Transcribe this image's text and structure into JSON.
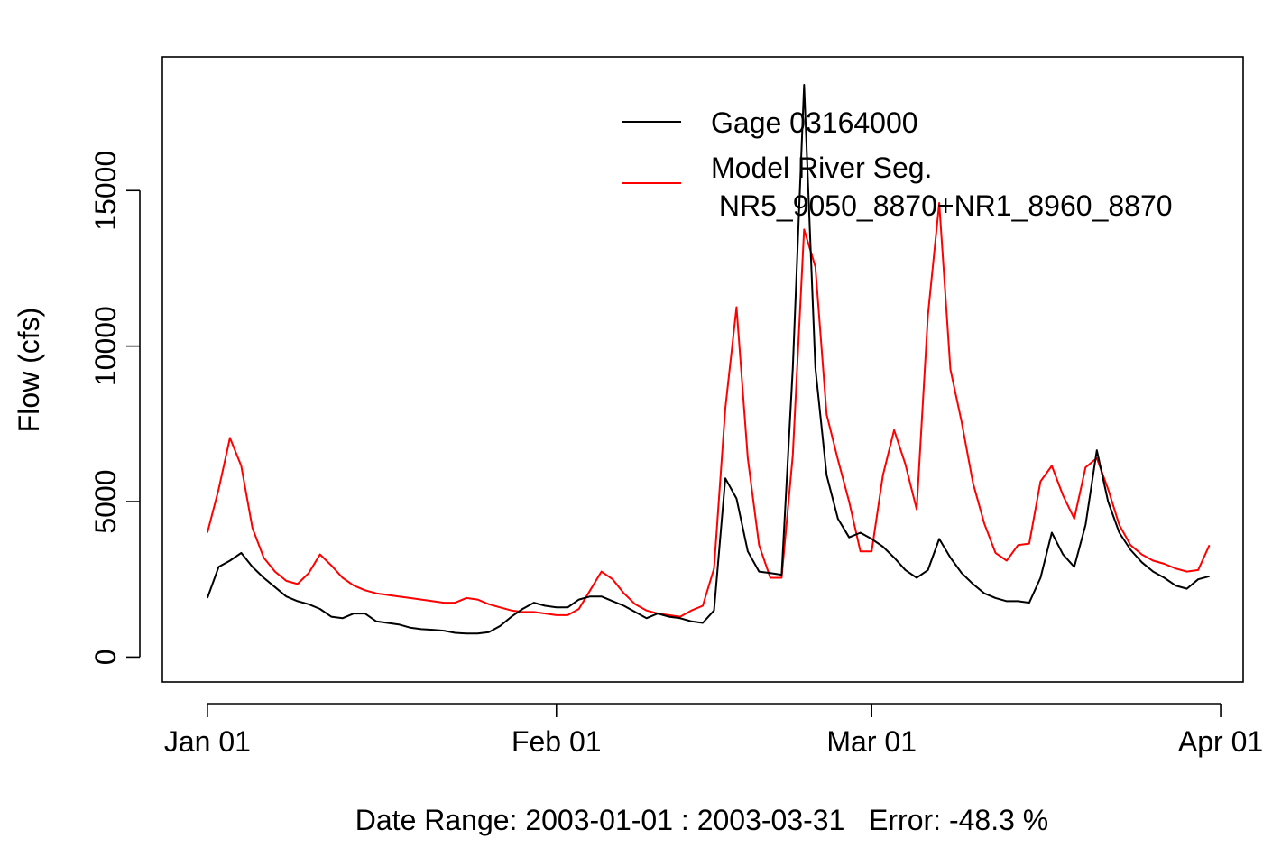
{
  "chart_data": {
    "type": "line",
    "title": "",
    "xlabel": "Date Range: 2003-01-01 : 2003-03-31   Error: -48.3 %",
    "ylabel": "Flow (cfs)",
    "x_start": "2003-01-01",
    "x_end": "2003-03-31",
    "x_ticks": [
      {
        "date": "2003-01-01",
        "label": "Jan 01"
      },
      {
        "date": "2003-02-01",
        "label": "Feb 01"
      },
      {
        "date": "2003-03-01",
        "label": "Mar 01"
      },
      {
        "date": "2003-04-01",
        "label": "Apr 01"
      }
    ],
    "xlim": [
      "2002-12-28",
      "2003-04-03"
    ],
    "ylim": [
      -800,
      19300
    ],
    "y_ticks": [
      0,
      5000,
      10000,
      15000
    ],
    "grid": false,
    "legend_position": "top-right",
    "series": [
      {
        "name": "Gage 03164000",
        "color": "#000000",
        "values": [
          1900,
          2900,
          3100,
          3350,
          2900,
          2550,
          2250,
          1950,
          1800,
          1700,
          1550,
          1300,
          1250,
          1400,
          1400,
          1150,
          1100,
          1050,
          950,
          900,
          880,
          850,
          780,
          760,
          760,
          800,
          1000,
          1300,
          1550,
          1750,
          1650,
          1600,
          1600,
          1850,
          1950,
          1950,
          1800,
          1650,
          1450,
          1250,
          1400,
          1300,
          1250,
          1150,
          1100,
          1500,
          5750,
          5100,
          3400,
          2750,
          2700,
          2650,
          9300,
          18400,
          9300,
          5850,
          4450,
          3850,
          4000,
          3800,
          3550,
          3200,
          2800,
          2550,
          2800,
          3800,
          3200,
          2700,
          2350,
          2050,
          1900,
          1800,
          1800,
          1750,
          2550,
          4000,
          3300,
          2900,
          4250,
          6650,
          5000,
          4000,
          3450,
          3050,
          2750,
          2550,
          2300,
          2200,
          2500,
          2600
        ]
      },
      {
        "name": "Model River Seg.\n NR5_9050_8870+NR1_8960_8870",
        "color": "#ff0000",
        "values": [
          4000,
          5400,
          7050,
          6150,
          4150,
          3200,
          2750,
          2450,
          2350,
          2700,
          3300,
          2950,
          2550,
          2300,
          2150,
          2050,
          2000,
          1950,
          1900,
          1850,
          1800,
          1750,
          1750,
          1900,
          1850,
          1700,
          1600,
          1500,
          1450,
          1450,
          1400,
          1350,
          1350,
          1550,
          2150,
          2750,
          2500,
          2050,
          1700,
          1500,
          1400,
          1350,
          1300,
          1500,
          1650,
          2850,
          8000,
          11250,
          6400,
          3600,
          2550,
          2550,
          6500,
          13750,
          12550,
          7800,
          6350,
          5000,
          3400,
          3400,
          5850,
          7300,
          6200,
          4750,
          11000,
          14600,
          9250,
          7550,
          5600,
          4300,
          3350,
          3100,
          3600,
          3650,
          5650,
          6150,
          5200,
          4450,
          6100,
          6400,
          5400,
          4250,
          3600,
          3300,
          3100,
          3000,
          2850,
          2750,
          2800,
          3600
        ]
      }
    ]
  }
}
